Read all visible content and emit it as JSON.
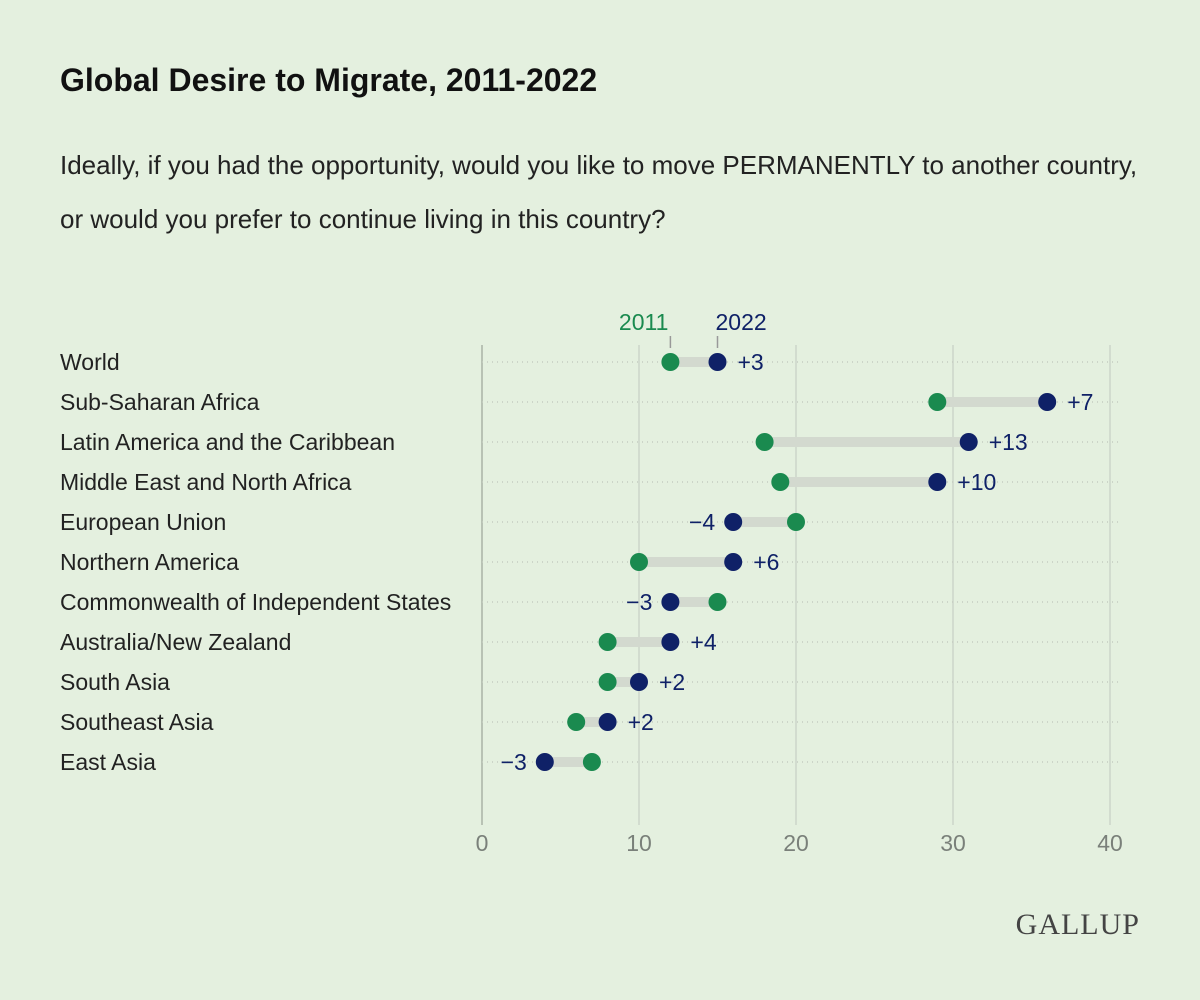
{
  "chart_data": {
    "type": "dumbbell",
    "title": "Global Desire to Migrate, 2011-2022",
    "subtitle": "Ideally, if you had the opportunity, would you like to move PERMANENTLY to another country, or would you prefer to continue living in this country?",
    "categories": [
      "World",
      "Sub-Saharan Africa",
      "Latin America and the Caribbean",
      "Middle East and North Africa",
      "European Union",
      "Northern America",
      "Commonwealth of Independent States",
      "Australia/New Zealand",
      "South Asia",
      "Southeast Asia",
      "East Asia"
    ],
    "series": [
      {
        "name": "2011",
        "color": "#1a8a4f",
        "values": [
          12,
          29,
          18,
          19,
          20,
          10,
          15,
          8,
          8,
          6,
          7
        ]
      },
      {
        "name": "2022",
        "color": "#0f2167",
        "values": [
          15,
          36,
          31,
          29,
          16,
          16,
          12,
          12,
          10,
          8,
          4
        ]
      }
    ],
    "changes": [
      3,
      7,
      13,
      10,
      -4,
      6,
      -3,
      4,
      2,
      2,
      -3
    ],
    "change_labels": [
      "+3",
      "+7",
      "+13",
      "+10",
      "−4",
      "+6",
      "−3",
      "+4",
      "+2",
      "+2",
      "−3"
    ],
    "xlim": [
      0,
      40
    ],
    "xticks": [
      0,
      10,
      20,
      30,
      40
    ],
    "grid": true,
    "source": "GALLUP"
  }
}
